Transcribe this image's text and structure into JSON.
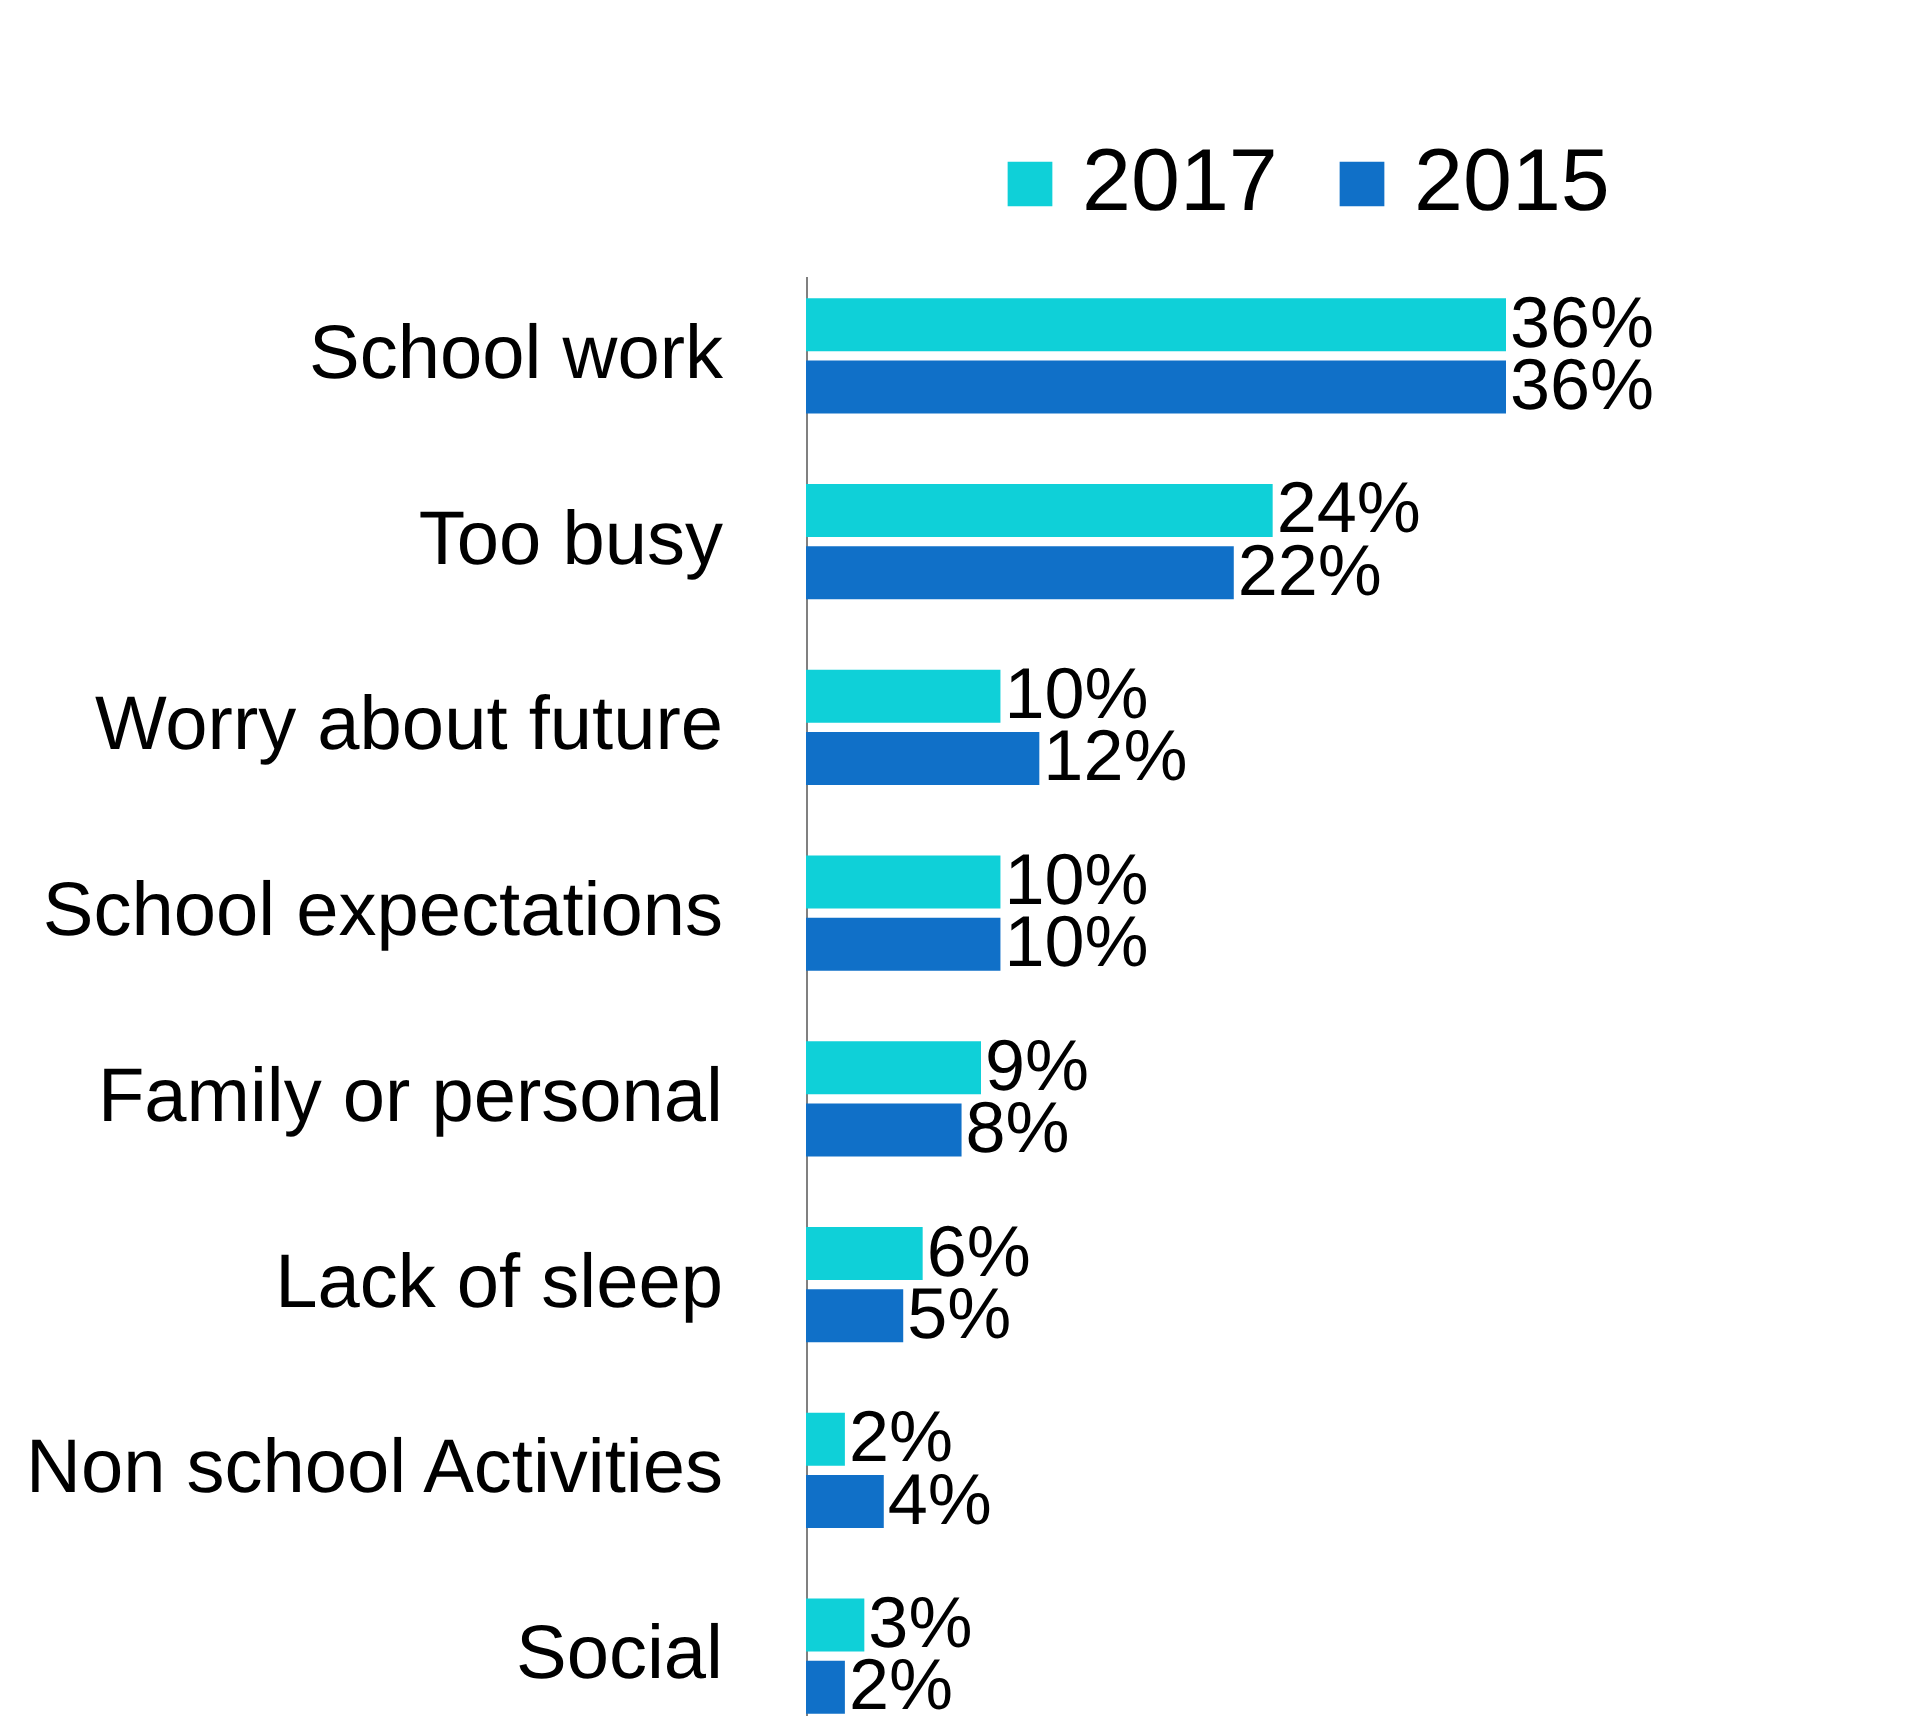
{
  "chart_data": {
    "type": "bar",
    "orientation": "horizontal",
    "legend": "top right",
    "categories": [
      "School work",
      "Too busy",
      "Worry about future",
      "School expectations",
      "Family or personal",
      "Lack of sleep",
      "Non school Activities",
      "Social"
    ],
    "series": [
      {
        "name": "2017",
        "color": "#0fd0d8",
        "values": [
          36,
          24,
          10,
          10,
          9,
          6,
          2,
          3
        ],
        "value_labels": [
          "36%",
          "24%",
          "10%",
          "10%",
          "9%",
          "6%",
          "2%",
          "3%"
        ]
      },
      {
        "name": "2015",
        "color": "#1070c8",
        "values": [
          36,
          22,
          12,
          10,
          8,
          5,
          4,
          2
        ],
        "value_labels": [
          "36%",
          "22%",
          "12%",
          "10%",
          "8%",
          "5%",
          "4%",
          "2%"
        ]
      }
    ]
  }
}
